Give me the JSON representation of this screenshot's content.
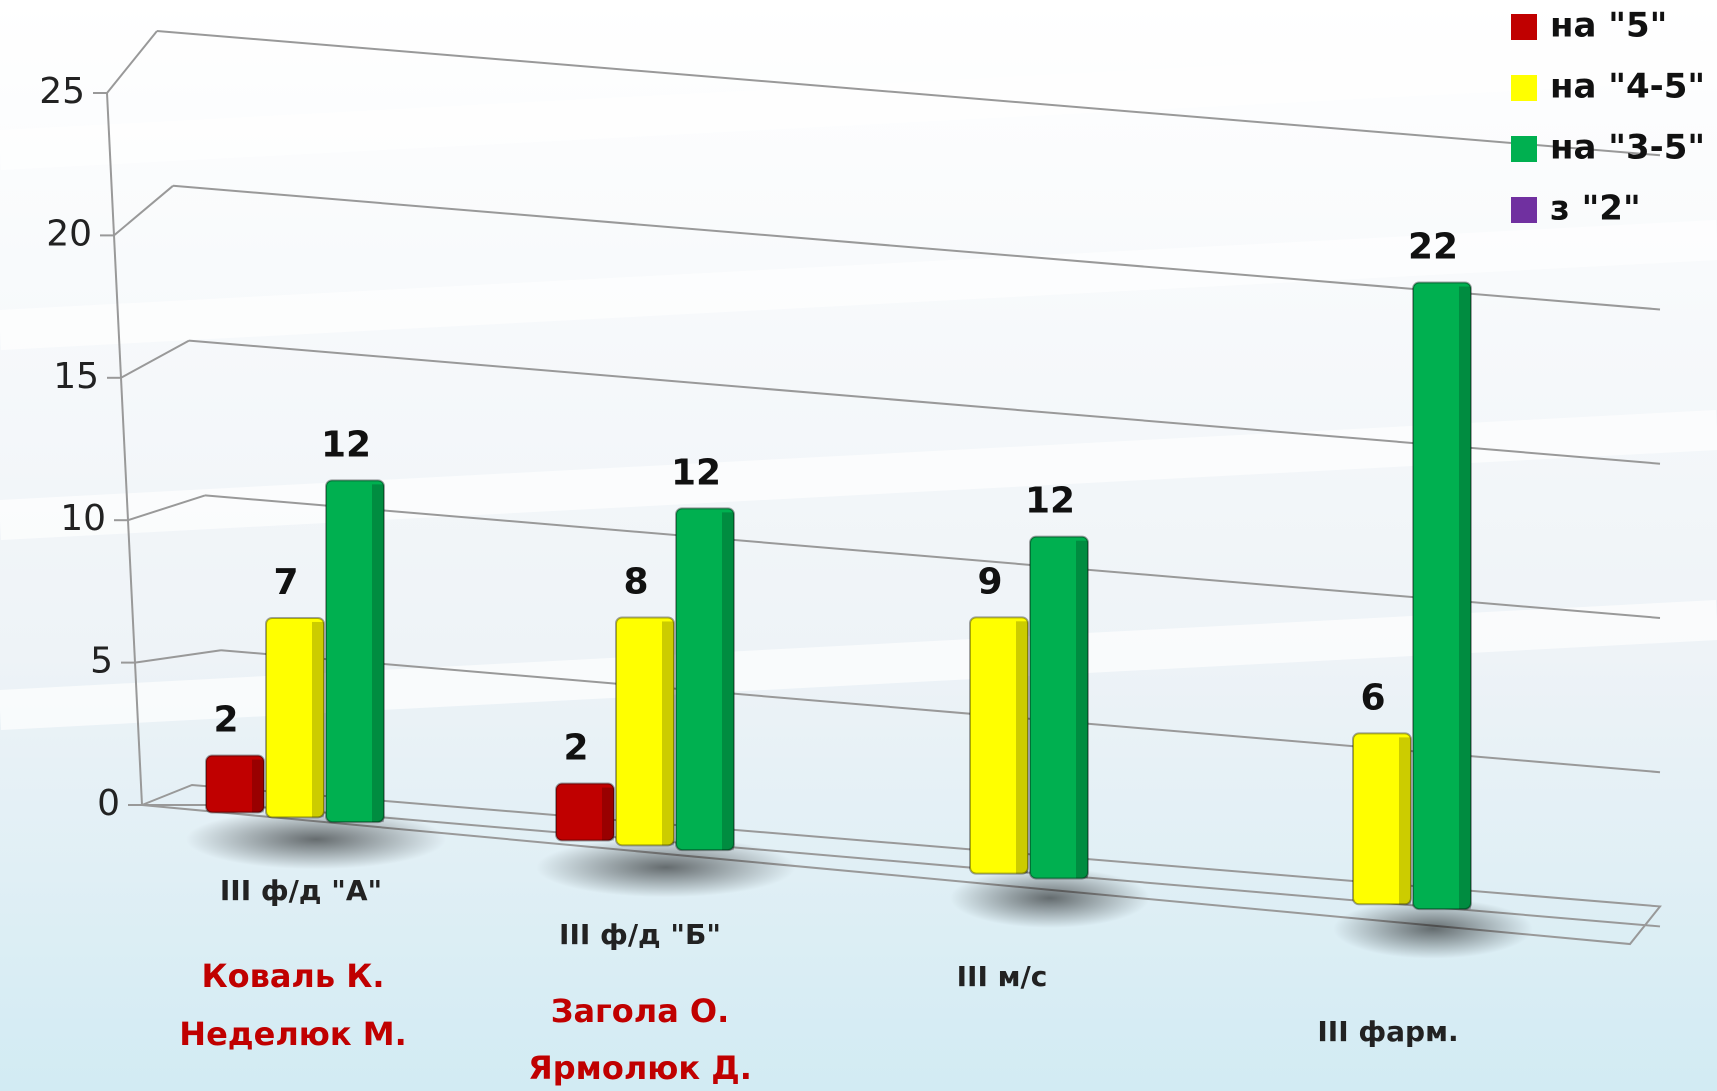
{
  "chart_data": {
    "type": "bar",
    "categories": [
      "III ф/д \"А\"",
      "III ф/д \"Б\"",
      "III м/с",
      "III фарм."
    ],
    "series": [
      {
        "name": "на \"5\"",
        "color": "#c00000",
        "values": [
          2,
          2,
          null,
          null
        ]
      },
      {
        "name": "на \"4-5\"",
        "color": "#ffff00",
        "values": [
          7,
          8,
          9,
          6
        ]
      },
      {
        "name": "на \"3-5\"",
        "color": "#00b050",
        "values": [
          12,
          12,
          12,
          22
        ]
      },
      {
        "name": "з \"2\"",
        "color": "#7030a0",
        "values": [
          null,
          null,
          null,
          null
        ]
      }
    ],
    "ylim": [
      0,
      25
    ],
    "yticks": [
      0,
      5,
      10,
      15,
      20,
      25
    ],
    "grid": true,
    "legend": "top-right",
    "annotations": [
      "Коваль К.",
      "Неделюк М.",
      "Загола О.",
      "Ярмолюк Д."
    ]
  }
}
